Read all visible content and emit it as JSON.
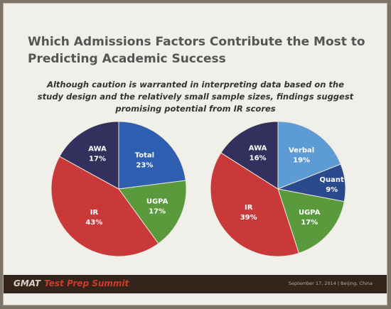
{
  "slide": {
    "title_lines": [
      "Which Admissions Factors Contribute the Most to",
      "Predicting Academic Success"
    ],
    "subtitle_lines": [
      "Although caution is warranted in interpreting data based on the",
      "study design and the relatively small sample sizes, findings suggest",
      "promising potential from IR scores"
    ]
  },
  "chart_data": [
    {
      "type": "pie",
      "slices": [
        {
          "label": "Total",
          "value_label": "23%",
          "value": 23,
          "color": "#2f5fb0"
        },
        {
          "label": "UGPA",
          "value_label": "17%",
          "value": 17,
          "color": "#5a9a3c"
        },
        {
          "label": "IR",
          "value_label": "43%",
          "value": 43,
          "color": "#c9393a"
        },
        {
          "label": "AWA",
          "value_label": "17%",
          "value": 17,
          "color": "#33305e"
        }
      ]
    },
    {
      "type": "pie",
      "slices": [
        {
          "label": "Verbal",
          "value_label": "19%",
          "value": 19,
          "color": "#5d9bd4"
        },
        {
          "label": "Quant",
          "value_label": "9%",
          "value": 9,
          "color": "#2b4a8e"
        },
        {
          "label": "UGPA",
          "value_label": "17%",
          "value": 17,
          "color": "#5a9a3c"
        },
        {
          "label": "IR",
          "value_label": "39%",
          "value": 39,
          "color": "#c9393a"
        },
        {
          "label": "AWA",
          "value_label": "16%",
          "value": 16,
          "color": "#33305e"
        }
      ]
    }
  ],
  "footer": {
    "brand_gmat": "GMAT",
    "brand_event": "Test Prep Summit",
    "date_location": "September 17, 2014  |  Beijing, China"
  }
}
